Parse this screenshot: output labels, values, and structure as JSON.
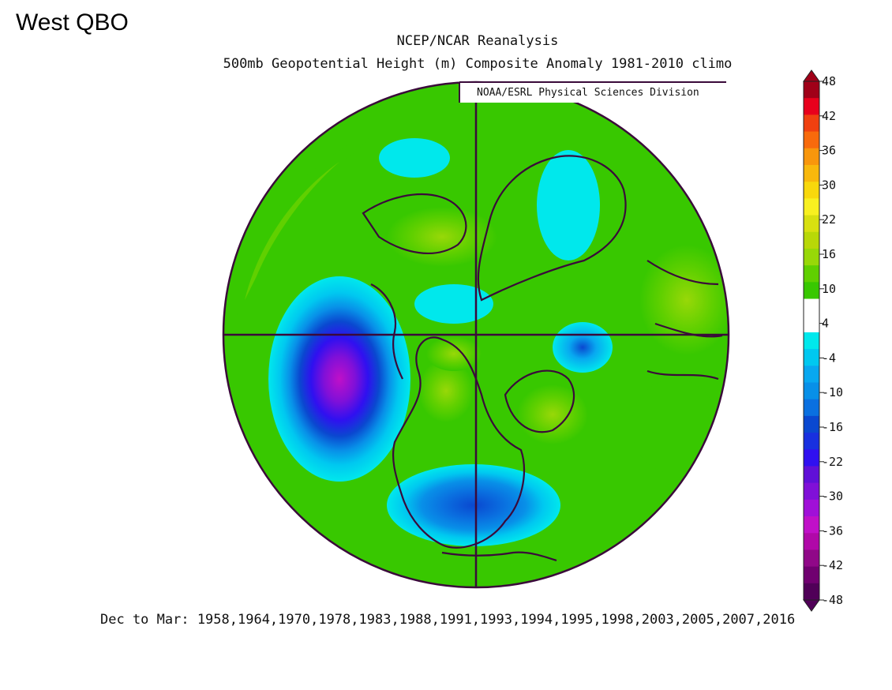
{
  "panel_label": "West QBO",
  "title_line1": "NCEP/NCAR Reanalysis",
  "title_line2": "500mb Geopotential Height (m) Composite Anomaly 1981-2010 climo",
  "credit": "NOAA/ESRL Physical Sciences Division",
  "footer": "Dec to Mar: 1958,1964,1970,1978,1983,1988,1991,1993,1994,1995,1998,2003,2005,2007,2016",
  "projection": "north-polar-stereographic",
  "colorbar": {
    "labels": [
      "48",
      "42",
      "36",
      "30",
      "22",
      "16",
      "10",
      "4",
      "-4",
      "-10",
      "-16",
      "-22",
      "-30",
      "-36",
      "-42",
      "-48"
    ],
    "colors": [
      "#a00018",
      "#e8001c",
      "#f04010",
      "#f86a0c",
      "#f8960c",
      "#f8b80c",
      "#f8d80c",
      "#f8f020",
      "#d8e010",
      "#b8d808",
      "#98d808",
      "#60d000",
      "#38c800",
      "#ffffff",
      "#ffffff",
      "#00e8ec",
      "#00c8f0",
      "#08a8f0",
      "#0890e8",
      "#0a70e0",
      "#0a48d0",
      "#1830e0",
      "#3010f0",
      "#6010d8",
      "#8010d8",
      "#a010d8",
      "#c010c8",
      "#b008a8",
      "#900888",
      "#700070",
      "#500058"
    ]
  },
  "anomaly_features": [
    {
      "name": "north-pacific-low",
      "sign": "negative",
      "peak_m": -36
    },
    {
      "name": "eastern-us-trough",
      "sign": "negative",
      "peak_m": -22
    },
    {
      "name": "siberia-low",
      "sign": "negative",
      "peak_m": -16
    },
    {
      "name": "hudson-bay-high",
      "sign": "positive",
      "peak_m": 10
    },
    {
      "name": "greenland-high",
      "sign": "positive",
      "peak_m": 10
    },
    {
      "name": "europe-high",
      "sign": "positive",
      "peak_m": 16
    },
    {
      "name": "atlantic-high",
      "sign": "positive",
      "peak_m": 10
    },
    {
      "name": "subtropical-ring",
      "sign": "positive",
      "peak_m": 10
    }
  ]
}
